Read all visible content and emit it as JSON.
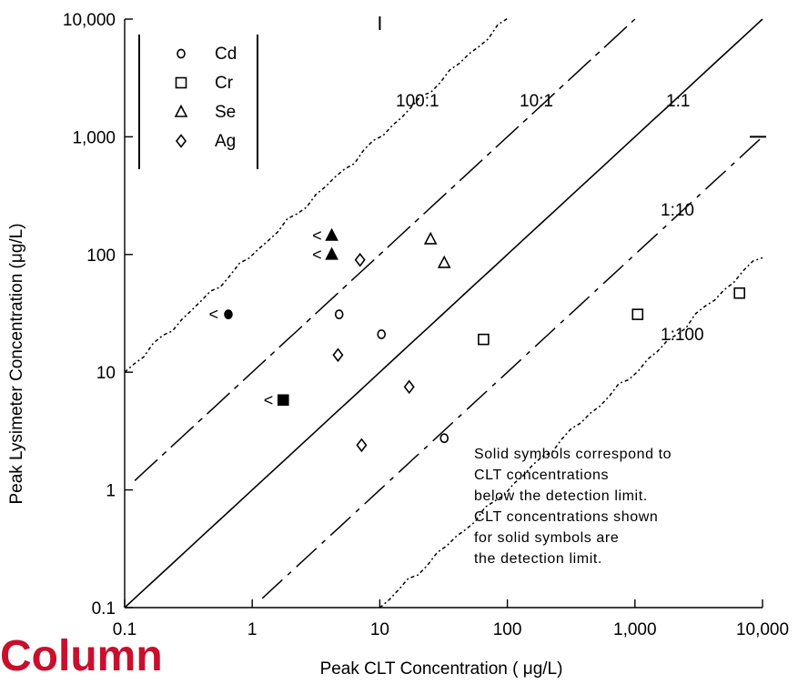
{
  "watermark_text": "Column",
  "chart_data": {
    "type": "scatter",
    "xlabel": "Peak CLT Concentration (  μg/L)",
    "ylabel": "Peak Lysimeter Concentration (μg/L)",
    "x_scale": "log",
    "y_scale": "log",
    "xlim": [
      0.1,
      10000
    ],
    "ylim": [
      0.1,
      10000
    ],
    "x_ticks": [
      {
        "value": 0.1,
        "label": "0.1"
      },
      {
        "value": 1,
        "label": "1"
      },
      {
        "value": 10,
        "label": "10"
      },
      {
        "value": 100,
        "label": "100"
      },
      {
        "value": 1000,
        "label": "1,000"
      },
      {
        "value": 10000,
        "label": "10,000"
      }
    ],
    "y_ticks": [
      {
        "value": 0.1,
        "label": "0.1"
      },
      {
        "value": 1,
        "label": "1"
      },
      {
        "value": 10,
        "label": "10"
      },
      {
        "value": 100,
        "label": "100"
      },
      {
        "value": 1000,
        "label": "1,000"
      },
      {
        "value": 10000,
        "label": "10,000"
      }
    ],
    "grid": false,
    "legend_position": "top-left",
    "legend": [
      {
        "name": "Cd",
        "marker": "circle"
      },
      {
        "name": "Cr",
        "marker": "square"
      },
      {
        "name": "Se",
        "marker": "triangle"
      },
      {
        "name": "Ag",
        "marker": "diamond"
      }
    ],
    "series": [
      {
        "name": "Cd",
        "marker": "circle",
        "points": [
          {
            "x": 0.65,
            "y": 31,
            "filled": true,
            "prefix": "<"
          },
          {
            "x": 4.8,
            "y": 31,
            "filled": false
          },
          {
            "x": 10.3,
            "y": 21,
            "filled": false
          },
          {
            "x": 32,
            "y": 2.75,
            "filled": false
          }
        ]
      },
      {
        "name": "Cr",
        "marker": "square",
        "points": [
          {
            "x": 1.75,
            "y": 5.8,
            "filled": true,
            "prefix": "<"
          },
          {
            "x": 65,
            "y": 19,
            "filled": false
          },
          {
            "x": 1050,
            "y": 31,
            "filled": false
          },
          {
            "x": 6600,
            "y": 47,
            "filled": false
          }
        ]
      },
      {
        "name": "Se",
        "marker": "triangle",
        "points": [
          {
            "x": 4.2,
            "y": 145,
            "filled": true,
            "prefix": "<"
          },
          {
            "x": 4.2,
            "y": 100,
            "filled": true,
            "prefix": "<"
          },
          {
            "x": 25,
            "y": 135,
            "filled": false
          },
          {
            "x": 32,
            "y": 85,
            "filled": false
          }
        ]
      },
      {
        "name": "Ag",
        "marker": "diamond",
        "points": [
          {
            "x": 7,
            "y": 90,
            "filled": false
          },
          {
            "x": 4.7,
            "y": 14,
            "filled": false
          },
          {
            "x": 17,
            "y": 7.5,
            "filled": false
          },
          {
            "x": 7.2,
            "y": 2.4,
            "filled": false
          }
        ]
      }
    ],
    "reference_lines": [
      {
        "label": "100:1",
        "ratio": 100,
        "style": "dotted",
        "x_from": 0.1,
        "x_to": 100
      },
      {
        "label": "10:1",
        "ratio": 10,
        "style": "long-dash",
        "x_from": 0.12,
        "x_to": 1000
      },
      {
        "label": "1:1",
        "ratio": 1,
        "style": "solid",
        "x_from": 0.1,
        "x_to": 10000
      },
      {
        "label": "1:10",
        "ratio": 0.1,
        "style": "dash-dot",
        "x_from": 1.2,
        "x_to": 10000
      },
      {
        "label": "1:100",
        "ratio": 0.01,
        "style": "dotted",
        "x_from": 10,
        "x_to": 10000
      }
    ],
    "annotation": [
      "Solid symbols correspond to",
      "CLT concentrations",
      "below the detection limit.",
      "CLT concentrations shown",
      "for solid symbols are",
      "the detection limit."
    ]
  }
}
